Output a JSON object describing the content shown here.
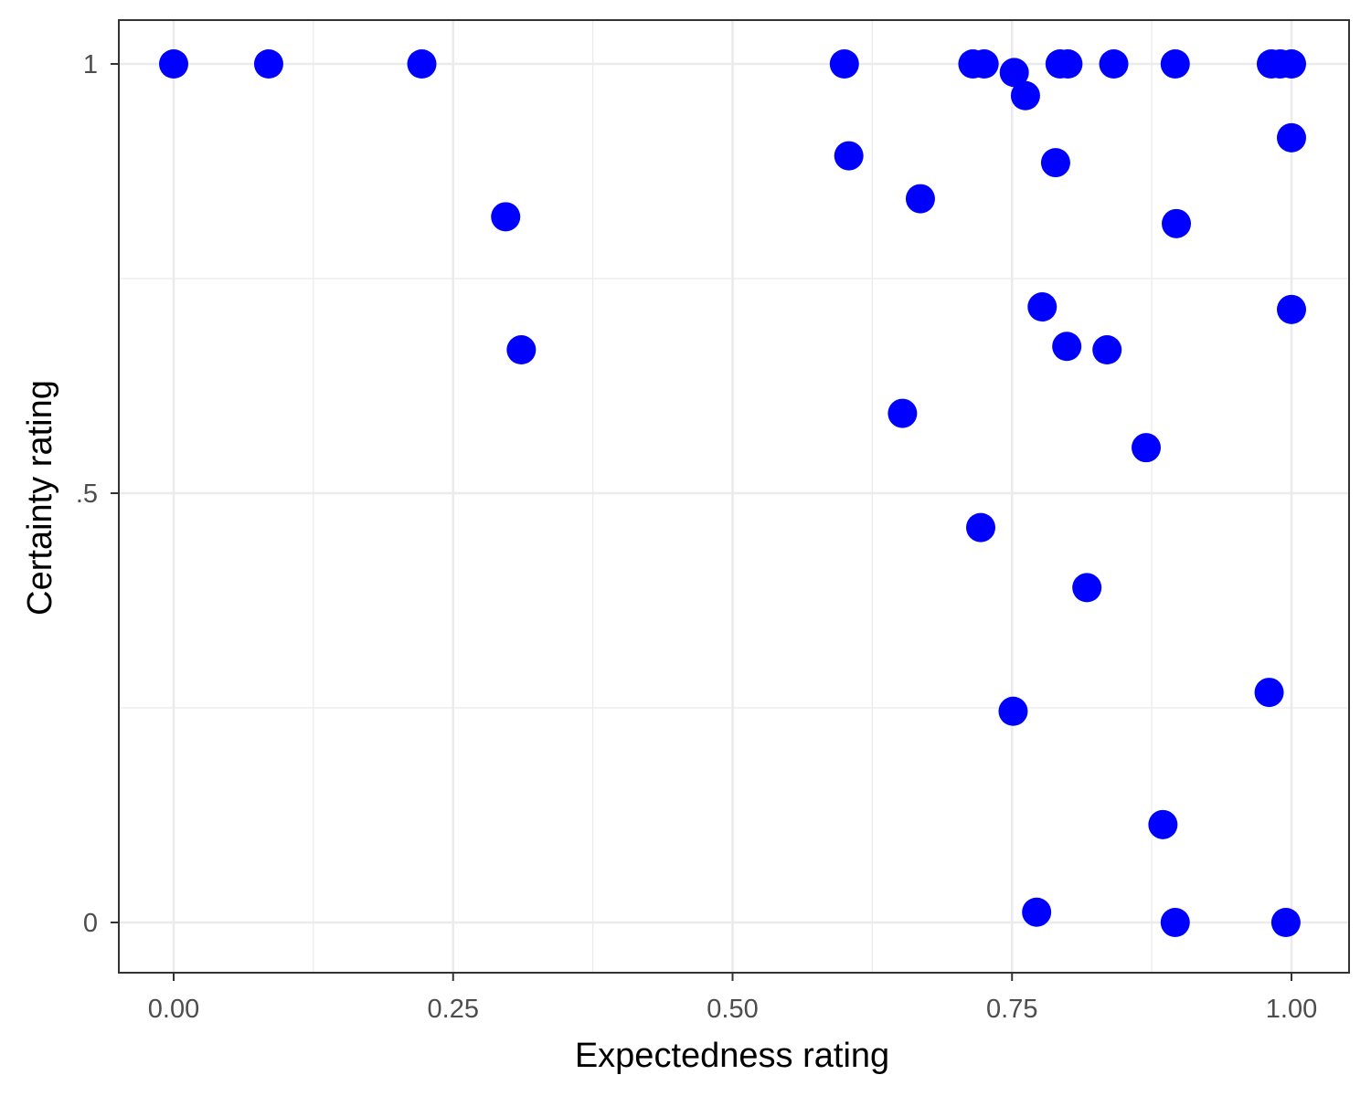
{
  "chart_data": {
    "type": "scatter",
    "xlabel": "Expectedness rating",
    "ylabel": "Certainty rating",
    "xlim": [
      -0.05,
      1.05
    ],
    "ylim": [
      -0.06,
      1.05
    ],
    "x_ticks": [
      {
        "value": 0,
        "label": "0.00"
      },
      {
        "value": 0.25,
        "label": "0.25"
      },
      {
        "value": 0.5,
        "label": "0.50"
      },
      {
        "value": 0.75,
        "label": "0.75"
      },
      {
        "value": 1,
        "label": "1.00"
      }
    ],
    "y_ticks": [
      {
        "value": 0,
        "label": "0"
      },
      {
        "value": 0.5,
        "label": ".5"
      },
      {
        "value": 1,
        "label": "1"
      }
    ],
    "x_minor_grid": [
      0.125,
      0.375,
      0.625,
      0.875
    ],
    "y_minor_grid": [
      0.25,
      0.75
    ],
    "grid": true,
    "point_color": "#0000ff",
    "panel_border_color": "#333333",
    "grid_color": "#ebebeb",
    "points": [
      {
        "x": 0.0,
        "y": 1.0
      },
      {
        "x": 0.085,
        "y": 1.0
      },
      {
        "x": 0.222,
        "y": 1.0
      },
      {
        "x": 0.6,
        "y": 1.0
      },
      {
        "x": 0.715,
        "y": 1.0
      },
      {
        "x": 0.725,
        "y": 1.0
      },
      {
        "x": 0.752,
        "y": 0.99
      },
      {
        "x": 0.762,
        "y": 0.963
      },
      {
        "x": 0.793,
        "y": 1.0
      },
      {
        "x": 0.8,
        "y": 1.0
      },
      {
        "x": 0.841,
        "y": 1.0
      },
      {
        "x": 0.896,
        "y": 1.0
      },
      {
        "x": 0.982,
        "y": 1.0
      },
      {
        "x": 0.99,
        "y": 1.0
      },
      {
        "x": 1.0,
        "y": 1.0
      },
      {
        "x": 1.0,
        "y": 0.914
      },
      {
        "x": 0.604,
        "y": 0.893
      },
      {
        "x": 0.789,
        "y": 0.885
      },
      {
        "x": 0.668,
        "y": 0.843
      },
      {
        "x": 0.297,
        "y": 0.822
      },
      {
        "x": 0.897,
        "y": 0.814
      },
      {
        "x": 0.777,
        "y": 0.717
      },
      {
        "x": 1.0,
        "y": 0.714
      },
      {
        "x": 0.311,
        "y": 0.667
      },
      {
        "x": 0.799,
        "y": 0.671
      },
      {
        "x": 0.835,
        "y": 0.667
      },
      {
        "x": 0.652,
        "y": 0.593
      },
      {
        "x": 0.87,
        "y": 0.553
      },
      {
        "x": 0.722,
        "y": 0.46
      },
      {
        "x": 0.817,
        "y": 0.39
      },
      {
        "x": 0.98,
        "y": 0.268
      },
      {
        "x": 0.751,
        "y": 0.246
      },
      {
        "x": 0.885,
        "y": 0.114
      },
      {
        "x": 0.772,
        "y": 0.012
      },
      {
        "x": 0.896,
        "y": 0.0
      },
      {
        "x": 0.995,
        "y": 0.0
      }
    ]
  }
}
